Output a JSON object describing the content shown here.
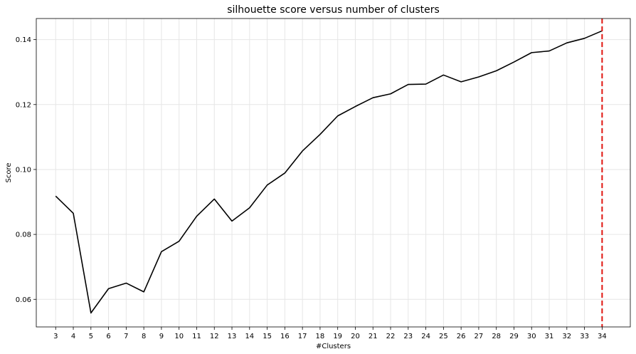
{
  "chart_data": {
    "type": "line",
    "title": "silhouette score versus number of clusters",
    "xlabel": "#Clusters",
    "ylabel": "Score",
    "x": [
      3,
      4,
      5,
      6,
      7,
      8,
      9,
      10,
      11,
      12,
      13,
      14,
      15,
      16,
      17,
      18,
      19,
      20,
      21,
      22,
      23,
      24,
      25,
      26,
      27,
      28,
      29,
      30,
      31,
      32,
      33,
      34
    ],
    "series": [
      {
        "values": [
          0.0918,
          0.0865,
          0.0558,
          0.0633,
          0.065,
          0.0623,
          0.0747,
          0.0779,
          0.0856,
          0.0909,
          0.0841,
          0.0882,
          0.0952,
          0.0989,
          0.1057,
          0.1108,
          0.1165,
          0.1194,
          0.1221,
          0.1233,
          0.1262,
          0.1263,
          0.1291,
          0.127,
          0.1285,
          0.1304,
          0.1331,
          0.136,
          0.1365,
          0.139,
          0.1404,
          0.1427
        ],
        "color": "#000000"
      }
    ],
    "xlim": [
      1.9,
      35.6
    ],
    "ylim": [
      0.0515,
      0.1465
    ],
    "yticks": [
      0.06,
      0.08,
      0.1,
      0.12,
      0.14
    ],
    "ytick_labels": [
      "0.06",
      "0.08",
      "0.10",
      "0.12",
      "0.14"
    ],
    "vline": {
      "x": 34,
      "color": "#e0140e",
      "style": "dashed"
    },
    "grid": true,
    "legend": "none"
  }
}
